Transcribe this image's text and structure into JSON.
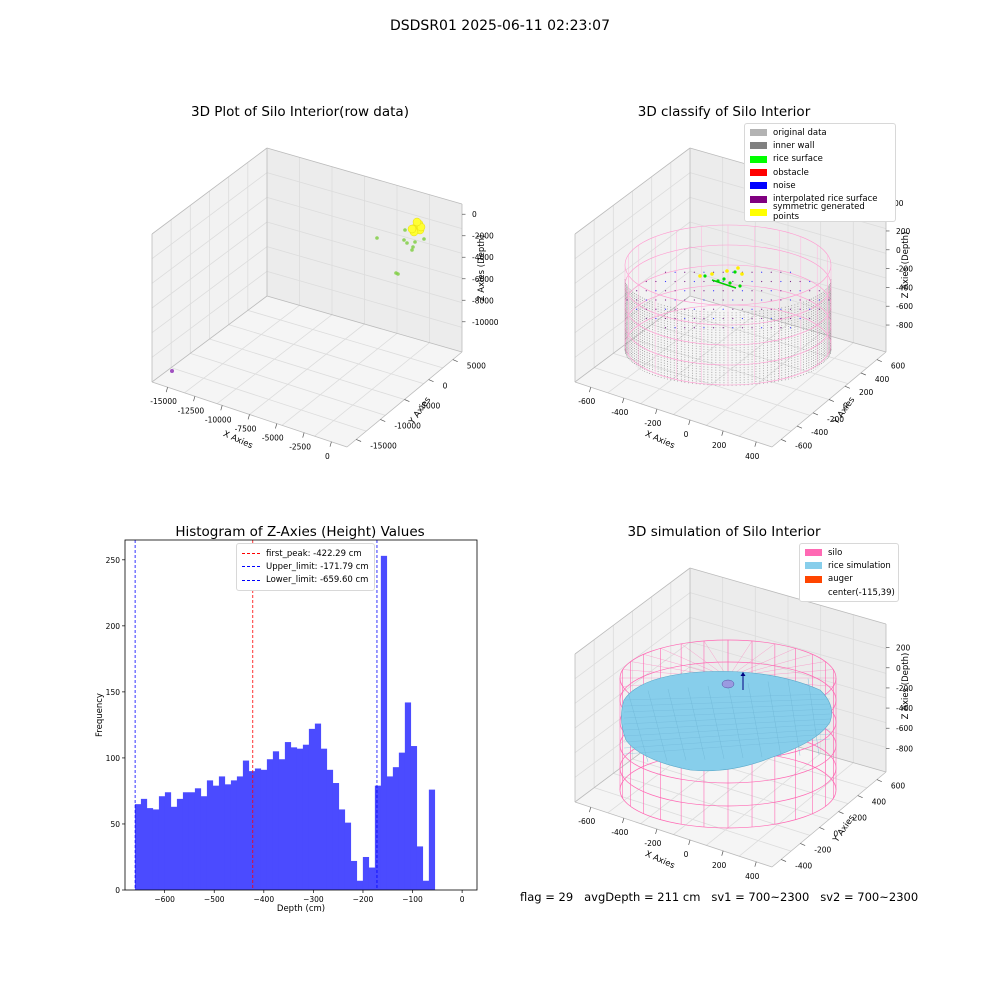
{
  "suptitle": "DSDSR01 2025-06-11 02:23:07",
  "panels": {
    "raw": {
      "title": "3D Plot of Silo Interior(row data)",
      "xlabel": "X Axies",
      "ylabel": "Y Axies",
      "zlabel": "Z Axies (Depth)",
      "xticks": [
        "-15000",
        "-12500",
        "-10000",
        "-7500",
        "-5000",
        "-2500",
        "0"
      ],
      "yticks": [
        "5000",
        "0",
        "-5000",
        "-10000",
        "-15000"
      ],
      "zticks": [
        "0",
        "-2000",
        "-4000",
        "-6000",
        "-8000",
        "-10000"
      ]
    },
    "classify": {
      "title": "3D classify of Silo Interior",
      "xlabel": "X Axies",
      "ylabel": "Y Axies",
      "zlabel": "Z Axies (Depth)",
      "xticks": [
        "-600",
        "-400",
        "-200",
        "0",
        "200",
        "400"
      ],
      "yticks": [
        "600",
        "400",
        "200",
        "0",
        "-200",
        "-400",
        "-600"
      ],
      "zticks": [
        "200",
        "0",
        "-200",
        "-400",
        "-600",
        "-800"
      ],
      "zticks_top": "00",
      "legend": [
        {
          "label": "original data",
          "color": "#b3b3b3"
        },
        {
          "label": "inner wall",
          "color": "#808080"
        },
        {
          "label": "rice surface",
          "color": "#00ff00"
        },
        {
          "label": "obstacle",
          "color": "#ff0000"
        },
        {
          "label": "noise",
          "color": "#0000ff"
        },
        {
          "label": "interpolated rice surface",
          "color": "#800080"
        },
        {
          "label": "symmetric generated points",
          "color": "#ffff00"
        }
      ]
    },
    "simulation": {
      "title": "3D simulation of Silo Interior",
      "xlabel": "X Axies",
      "ylabel": "Y Axies",
      "zlabel": "Z Axies (Depth)",
      "xticks": [
        "-600",
        "-400",
        "-200",
        "0",
        "200",
        "400"
      ],
      "yticks": [
        "600",
        "400",
        "200",
        "0",
        "-200",
        "-400"
      ],
      "zticks": [
        "200",
        "0",
        "-200",
        "-400",
        "-600",
        "-800"
      ],
      "legend": [
        {
          "label": "silo",
          "color": "#ff69b4"
        },
        {
          "label": "rice simulation",
          "color": "#87ceeb"
        },
        {
          "label": "auger",
          "color": "#ff4500"
        },
        {
          "label": "center(-115,39)",
          "color": ""
        }
      ]
    }
  },
  "chart_data": [
    {
      "type": "bar",
      "title": "Histogram of Z-Axies (Height) Values",
      "xlabel": "Depth (cm)",
      "ylabel": "Frequency",
      "xlim": [
        -680,
        30
      ],
      "ylim": [
        0,
        265
      ],
      "xticks": [
        -600,
        -500,
        -400,
        -300,
        -200,
        -100,
        0
      ],
      "yticks": [
        0,
        50,
        100,
        150,
        200,
        250
      ],
      "bin_start": -660,
      "bin_width": 12.1,
      "bar_color": "#4b4bff",
      "values": [
        65,
        69,
        62,
        61,
        71,
        74,
        63,
        69,
        74,
        74,
        77,
        71,
        83,
        79,
        86,
        80,
        83,
        86,
        98,
        90,
        92,
        91,
        99,
        105,
        99,
        112,
        108,
        107,
        110,
        122,
        126,
        107,
        91,
        81,
        61,
        51,
        22,
        7,
        25,
        17,
        79,
        253,
        86,
        93,
        104,
        142,
        109,
        33,
        7,
        76
      ],
      "vlines": [
        {
          "label": "first_peak: -422.29 cm",
          "x": -422.29,
          "color": "#ff0000"
        },
        {
          "label": "Upper_limit: -171.79 cm",
          "x": -171.79,
          "color": "#0000ff"
        },
        {
          "label": "Lower_limit: -659.60 cm",
          "x": -659.6,
          "color": "#0000ff"
        }
      ]
    }
  ],
  "footer": "flag = 29   avgDepth = 211 cm   sv1 = 700~2300   sv2 = 700~2300"
}
